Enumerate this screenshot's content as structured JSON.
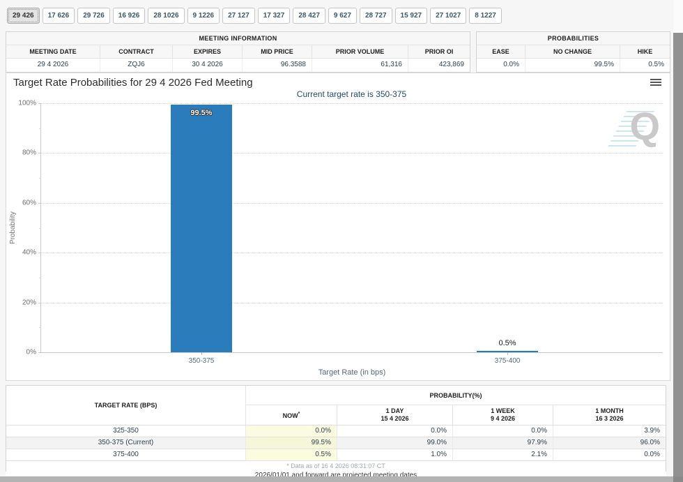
{
  "tabs": {
    "items": [
      {
        "label": "29 426",
        "selected": true
      },
      {
        "label": "17 626",
        "selected": false
      },
      {
        "label": "29 726",
        "selected": false
      },
      {
        "label": "16 926",
        "selected": false
      },
      {
        "label": "28 1026",
        "selected": false
      },
      {
        "label": "9 1226",
        "selected": false
      },
      {
        "label": "27 127",
        "selected": false
      },
      {
        "label": "17 327",
        "selected": false
      },
      {
        "label": "28 427",
        "selected": false
      },
      {
        "label": "9 627",
        "selected": false
      },
      {
        "label": "28 727",
        "selected": false
      },
      {
        "label": "15 927",
        "selected": false
      },
      {
        "label": "27 1027",
        "selected": false
      },
      {
        "label": "8 1227",
        "selected": false
      }
    ]
  },
  "meeting_info": {
    "title": "MEETING INFORMATION",
    "columns": [
      "MEETING DATE",
      "CONTRACT",
      "EXPIRES",
      "MID PRICE",
      "PRIOR VOLUME",
      "PRIOR OI"
    ],
    "values": [
      "29 4 2026",
      "ZQJ6",
      "30 4 2026",
      "96.3588",
      "61,316",
      "423,869"
    ]
  },
  "probabilities_panel": {
    "title": "PROBABILITIES",
    "columns": [
      "EASE",
      "NO CHANGE",
      "HIKE"
    ],
    "values": [
      "0.0%",
      "99.5%",
      "0.5%"
    ]
  },
  "chart_data": {
    "type": "bar",
    "title": "Target Rate Probabilities for 29 4 2026 Fed Meeting",
    "subtitle": "Current target rate is 350-375",
    "categories": [
      "350-375",
      "375-400"
    ],
    "values": [
      99.5,
      0.5
    ],
    "value_labels": [
      "99.5%",
      "0.5%"
    ],
    "xlabel": "Target Rate (in bps)",
    "ylabel": "Probability",
    "ylim": [
      0,
      100
    ],
    "yticks": [
      "0%",
      "20%",
      "40%",
      "60%",
      "80%",
      "100%"
    ],
    "grid": "horizontal dotted",
    "legend": "none",
    "bar_color": "#2b7cba",
    "watermark": "Q"
  },
  "bottom_table": {
    "col1_header": "TARGET RATE (BPS)",
    "group_header": "PROBABILITY(%)",
    "columns": [
      {
        "label": "NOW",
        "sup": "*",
        "date": ""
      },
      {
        "label": "1 DAY",
        "date": "15 4 2026"
      },
      {
        "label": "1 WEEK",
        "date": "9 4 2026"
      },
      {
        "label": "1 MONTH",
        "date": "16 3 2026"
      }
    ],
    "rows": [
      {
        "rate": "325-350",
        "now": "0.0%",
        "day": "0.0%",
        "week": "0.0%",
        "month": "3.9%"
      },
      {
        "rate": "350-375 (Current)",
        "now": "99.5%",
        "day": "99.0%",
        "week": "97.9%",
        "month": "96.0%"
      },
      {
        "rate": "375-400",
        "now": "0.5%",
        "day": "1.0%",
        "week": "2.1%",
        "month": "0.0%"
      }
    ],
    "footnote": "* Data as of 16 4 2026 08:31:07 CT"
  },
  "projected_note": "2026/01/01 and forward are projected meeting dates"
}
